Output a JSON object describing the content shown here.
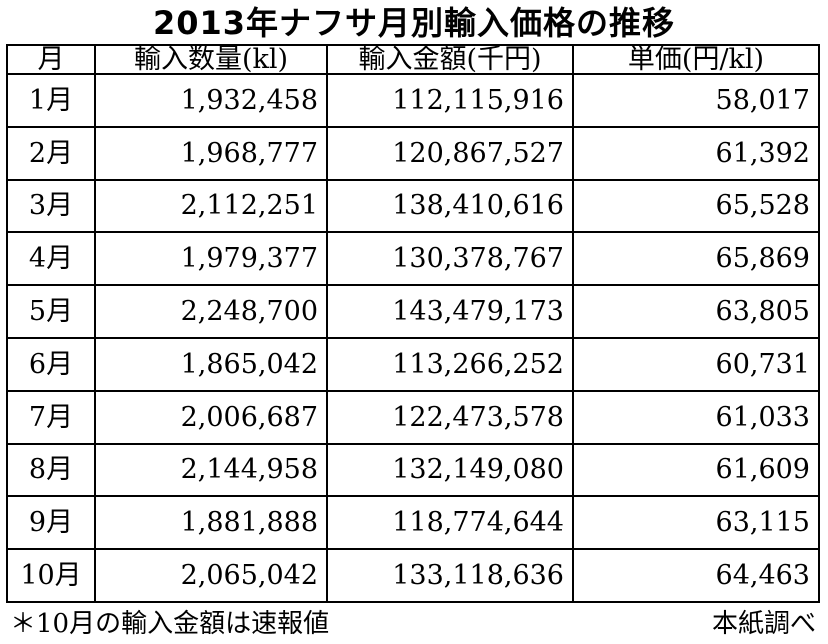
{
  "title": "2013年ナフサ月別輸入価格の推移",
  "table": {
    "headers": [
      "月",
      "輸入数量(kl)",
      "輸入金額(千円)",
      "単価(円/kl)"
    ],
    "rows": [
      [
        "1月",
        "1,932,458",
        "112,115,916",
        "58,017"
      ],
      [
        "2月",
        "1,968,777",
        "120,867,527",
        "61,392"
      ],
      [
        "3月",
        "2,112,251",
        "138,410,616",
        "65,528"
      ],
      [
        "4月",
        "1,979,377",
        "130,378,767",
        "65,869"
      ],
      [
        "5月",
        "2,248,700",
        "143,479,173",
        "63,805"
      ],
      [
        "6月",
        "1,865,042",
        "113,266,252",
        "60,731"
      ],
      [
        "7月",
        "2,006,687",
        "122,473,578",
        "61,033"
      ],
      [
        "8月",
        "2,144,958",
        "132,149,080",
        "61,609"
      ],
      [
        "9月",
        "1,881,888",
        "118,774,644",
        "63,115"
      ],
      [
        "10月",
        "2,065,042",
        "133,118,636",
        "64,463"
      ]
    ]
  },
  "footnote": "＊10月の輸入金額は速報値",
  "source": "本紙調べ"
}
